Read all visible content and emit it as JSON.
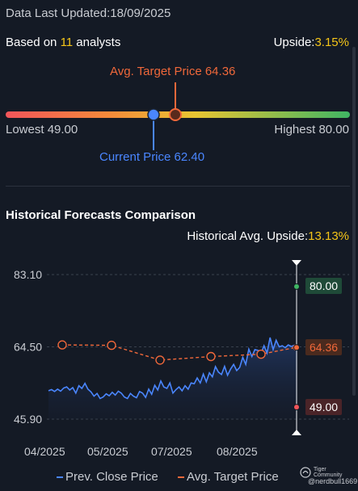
{
  "header": {
    "last_updated": "Data Last Updated:18/09/2025",
    "based_on_prefix": "Based on ",
    "analyst_count": "11",
    "based_on_suffix": " analysts",
    "upside_label": "Upside:",
    "upside_value": "3.15%"
  },
  "target_range": {
    "avg_target_label": "Avg. Target Price 64.36",
    "lowest_label": "Lowest 49.00",
    "highest_label": "Highest 80.00",
    "current_price_label": "Current Price 62.40",
    "lowest": 49.0,
    "highest": 80.0,
    "avg_target": 64.36,
    "current_price": 62.4,
    "colors": {
      "low": "#f2555a",
      "mid": "#f5c518",
      "high": "#3fb563",
      "marker_current": "#4a86ff",
      "marker_avg": "#f0683a"
    }
  },
  "history": {
    "section_title": "Historical Forecasts Comparison",
    "hist_upside_label": "Historical Avg. Upside:",
    "hist_upside_value": "13.13%",
    "legend_close": "Prev. Close Price",
    "legend_target": "Avg. Target Price"
  },
  "chart_data": {
    "type": "line",
    "y_ticks": [
      "83.10",
      "64.50",
      "45.90"
    ],
    "ylim": [
      45.9,
      83.1
    ],
    "x_ticks": [
      "04/2025",
      "05/2025",
      "07/2025",
      "08/2025"
    ],
    "right_labels": {
      "high": "80.00",
      "avg": "64.36",
      "low": "49.00"
    },
    "series": [
      {
        "name": "Prev. Close Price",
        "color": "#4a86ff",
        "values": [
          53.2,
          53.5,
          53.0,
          53.6,
          53.1,
          53.9,
          54.2,
          53.4,
          54.0,
          52.6,
          54.5,
          53.8,
          55.1,
          53.6,
          52.9,
          51.8,
          52.5,
          51.2,
          51.6,
          52.4,
          51.9,
          52.8,
          52.1,
          53.1,
          52.6,
          51.6,
          51.2,
          52.5,
          51.8,
          51.4,
          53.0,
          52.6,
          51.5,
          53.6,
          52.3,
          54.6,
          53.4,
          55.7,
          54.2,
          53.8,
          55.2,
          52.6,
          53.5,
          54.2,
          53.2,
          54.5,
          53.6,
          55.2,
          55.0,
          56.5,
          55.2,
          57.5,
          55.5,
          57.8,
          56.8,
          59.4,
          58.0,
          57.4,
          59.5,
          57.2,
          58.8,
          60.0,
          58.4,
          59.2,
          61.8,
          60.0,
          63.9,
          62.0,
          63.8,
          63.6,
          62.8,
          64.8,
          62.9,
          66.9,
          63.8,
          66.2,
          64.5,
          64.8,
          64.3,
          65.0,
          64.6,
          64.9,
          63.9
        ]
      },
      {
        "name": "Avg. Target Price",
        "color": "#f0683a",
        "values": [
          65.0,
          64.9,
          61.1,
          62.0,
          62.6,
          64.36
        ]
      }
    ],
    "legend": "bottom"
  },
  "footer": {
    "watermark_title": "Tiger Community",
    "watermark_user": "@nerdbull1669"
  }
}
